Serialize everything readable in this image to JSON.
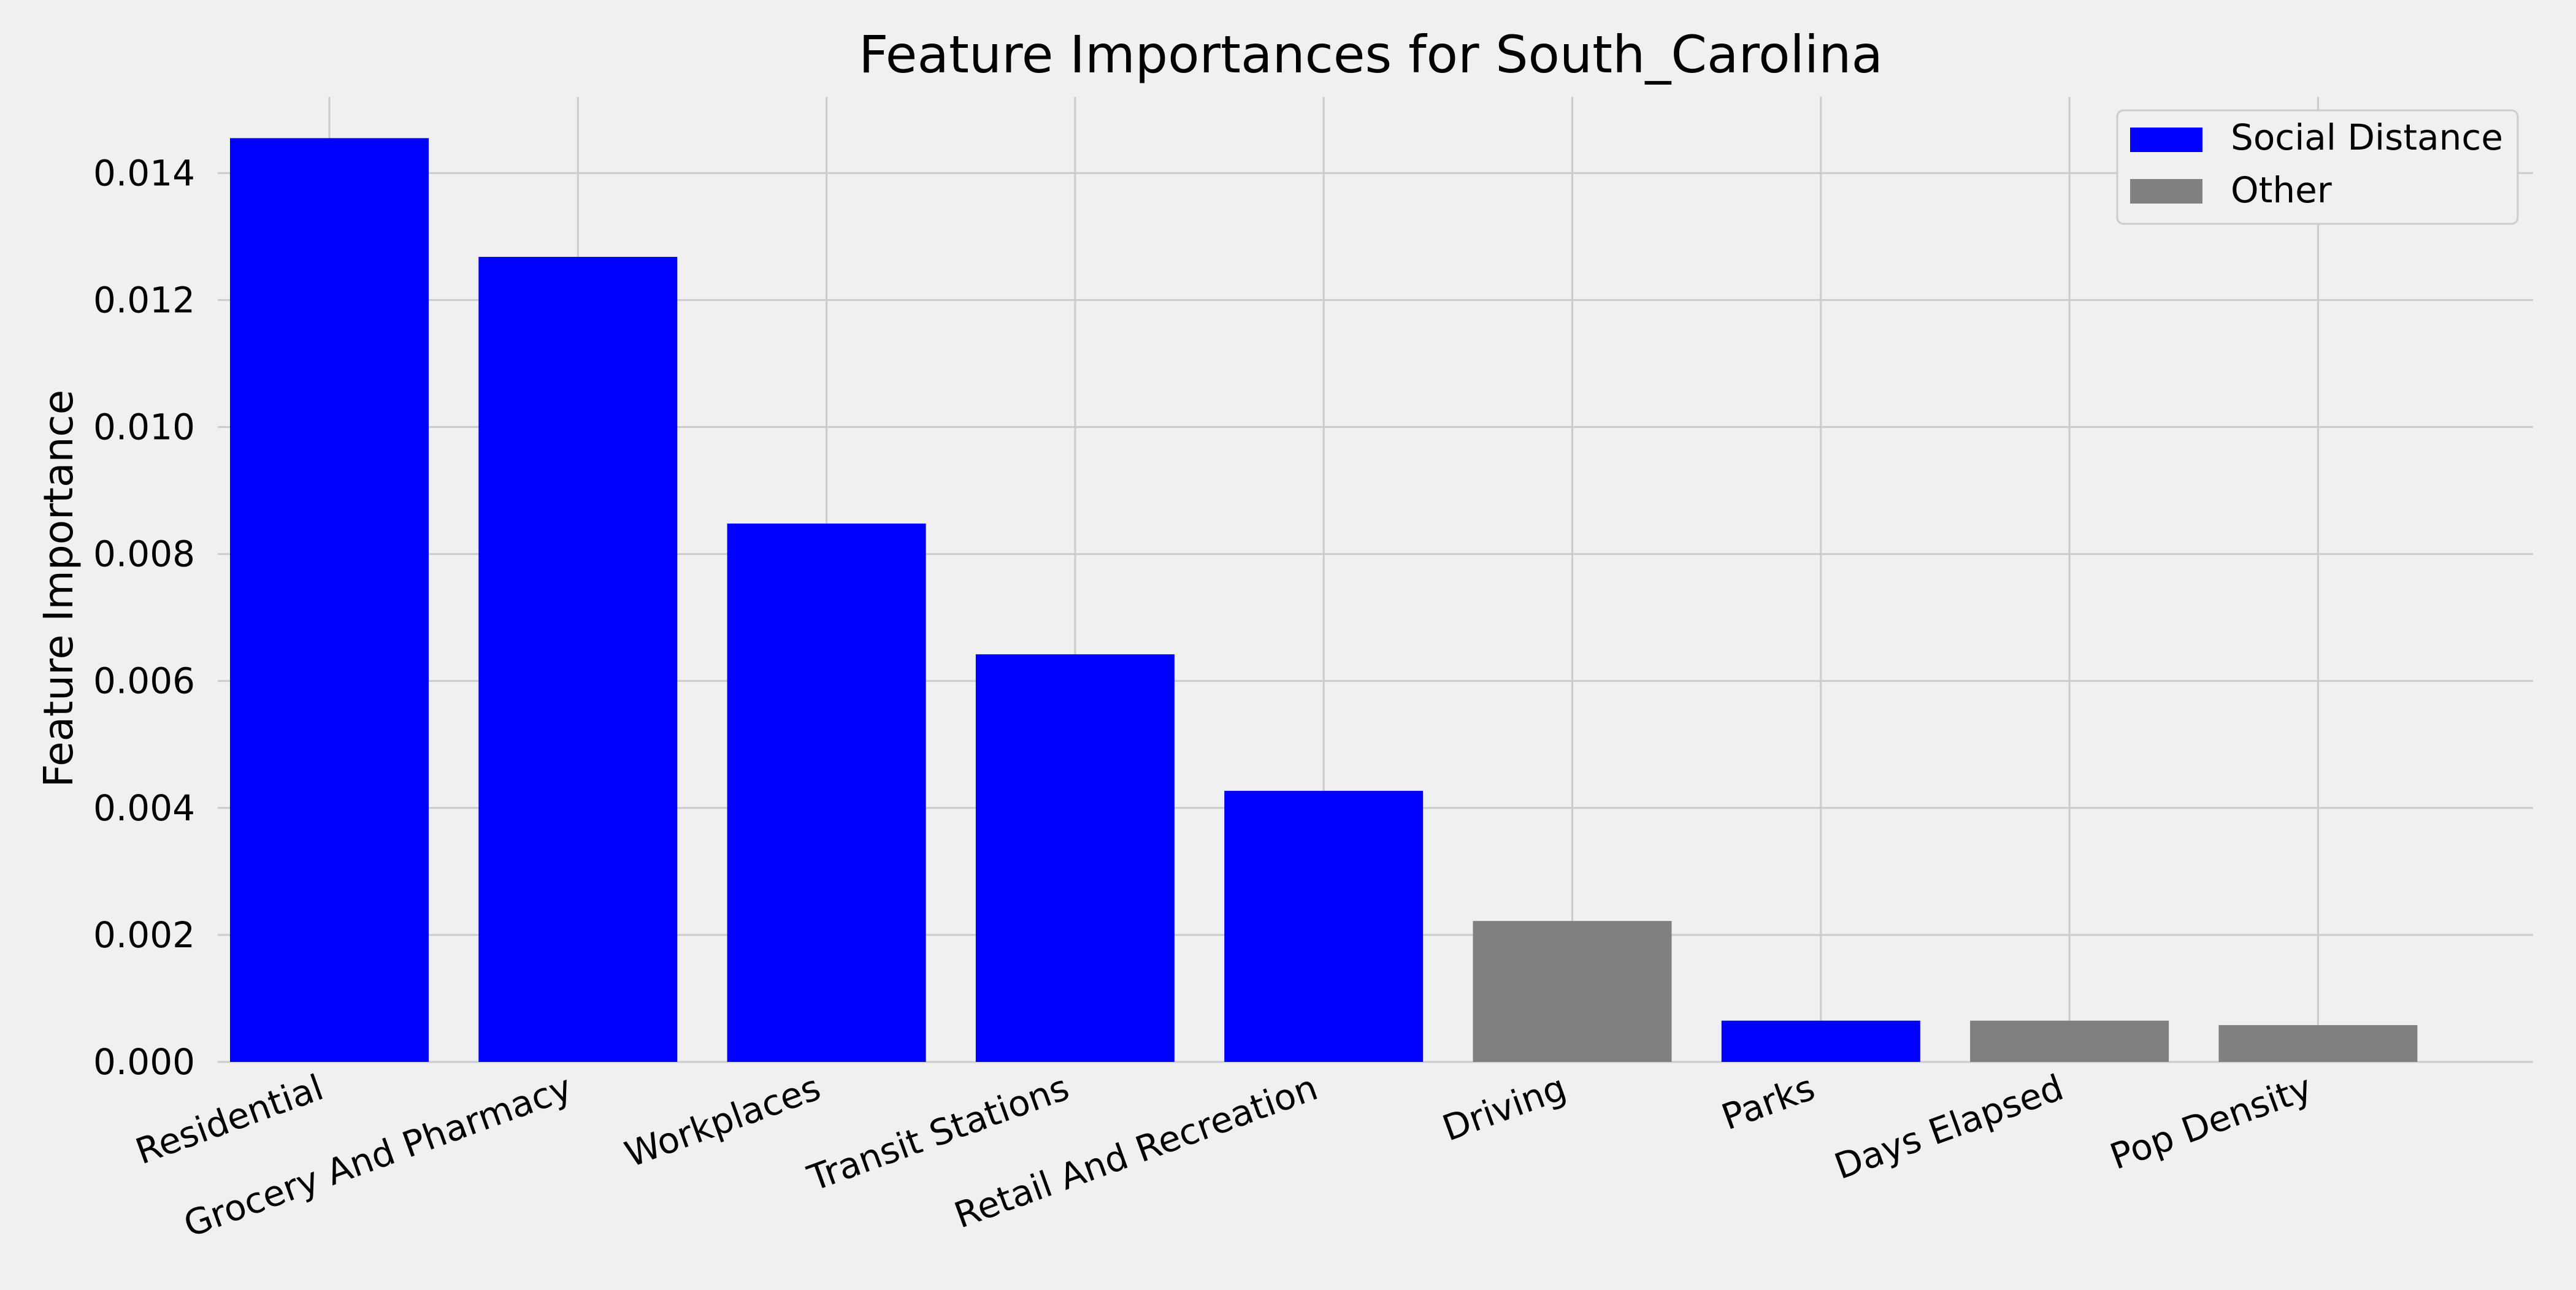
{
  "chart_data": {
    "type": "bar",
    "title": "Feature Importances for South_Carolina",
    "xlabel": "",
    "ylabel": "Feature Importance",
    "categories": [
      "Residential",
      "Grocery And Pharmacy",
      "Workplaces",
      "Transit Stations",
      "Retail And Recreation",
      "Driving",
      "Parks",
      "Days Elapsed",
      "Pop Density"
    ],
    "values": [
      0.01455,
      0.01268,
      0.00848,
      0.00642,
      0.00427,
      0.00222,
      0.00065,
      0.00065,
      0.00058
    ],
    "groups": [
      "Social Distance",
      "Social Distance",
      "Social Distance",
      "Social Distance",
      "Social Distance",
      "Other",
      "Social Distance",
      "Other",
      "Other"
    ],
    "legend": {
      "position": "top-right",
      "entries": [
        {
          "label": "Social Distance",
          "color": "#0000ff"
        },
        {
          "label": "Other",
          "color": "#808080"
        }
      ]
    },
    "ylim": [
      0,
      0.0152
    ],
    "yticks": [
      "0.000",
      "0.002",
      "0.004",
      "0.006",
      "0.008",
      "0.010",
      "0.012",
      "0.014"
    ],
    "grid": true,
    "colors": {
      "background": "#f0f0f0",
      "grid": "#cbcbcb",
      "Social Distance": "#0000ff",
      "Other": "#808080"
    }
  }
}
